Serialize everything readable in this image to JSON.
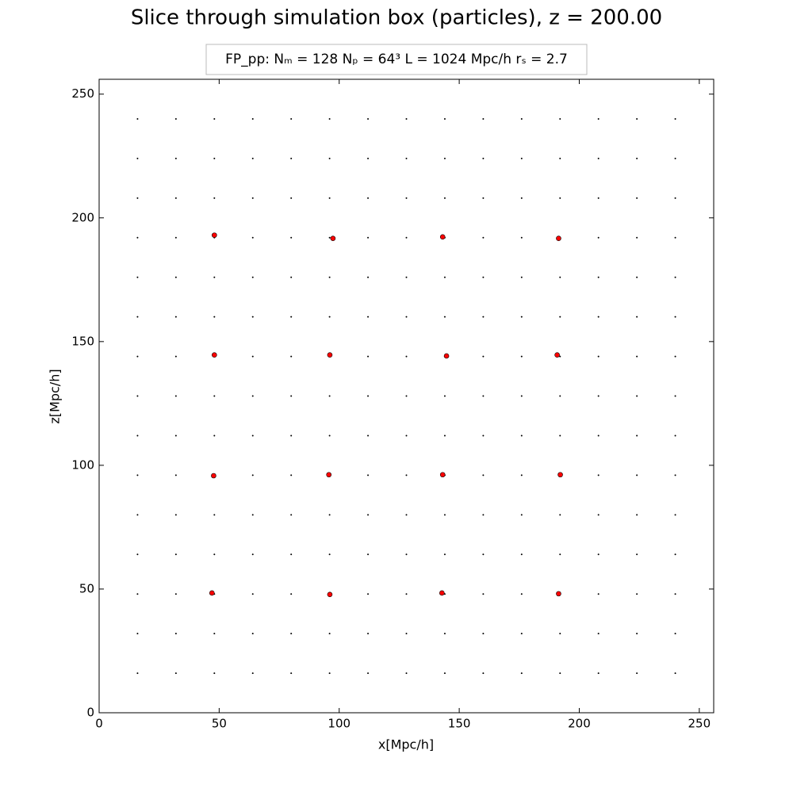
{
  "chart_data": {
    "type": "scatter",
    "title": "Slice through simulation box (particles), z = 200.00",
    "annotation": "FP_pp:  Nₘ = 128   Nₚ = 64³   L = 1024 Mpc/h   rₛ = 2.7",
    "x_label": "x[Mpc/h]",
    "y_label": "z[Mpc/h]",
    "xlim": [
      0,
      256
    ],
    "ylim": [
      0,
      256
    ],
    "xticks": [
      0,
      50,
      100,
      150,
      200,
      250
    ],
    "yticks": [
      0,
      50,
      100,
      150,
      200,
      250
    ],
    "grid": false,
    "series": [
      {
        "color": "#000000",
        "x": [
          16,
          32,
          48,
          64,
          80,
          96,
          112,
          128,
          144,
          160,
          176,
          192,
          208,
          224,
          240,
          16,
          32,
          48,
          64,
          80,
          96,
          112,
          128,
          144,
          160,
          176,
          192,
          208,
          224,
          240,
          16,
          32,
          48,
          64,
          80,
          96,
          112,
          128,
          144,
          160,
          176,
          192,
          208,
          224,
          240,
          16,
          32,
          48,
          64,
          80,
          96,
          112,
          128,
          144,
          160,
          176,
          192,
          208,
          224,
          240,
          16,
          32,
          48,
          64,
          80,
          96,
          112,
          128,
          144,
          160,
          176,
          192,
          208,
          224,
          240,
          16,
          32,
          48,
          64,
          80,
          96,
          112,
          128,
          144,
          160,
          176,
          192,
          208,
          224,
          240,
          16,
          32,
          48,
          64,
          80,
          96,
          112,
          128,
          144,
          160,
          176,
          192,
          208,
          224,
          240,
          16,
          32,
          48,
          64,
          80,
          96,
          112,
          128,
          144,
          160,
          176,
          192,
          208,
          224,
          240,
          16,
          32,
          48,
          64,
          80,
          96,
          112,
          128,
          144,
          160,
          176,
          192,
          208,
          224,
          240,
          16,
          32,
          48,
          64,
          80,
          96,
          112,
          128,
          144,
          160,
          176,
          192,
          208,
          224,
          240,
          16,
          32,
          48,
          64,
          80,
          96,
          112,
          128,
          144,
          160,
          176,
          192,
          208,
          224,
          240,
          16,
          32,
          48,
          64,
          80,
          96,
          112,
          128,
          144,
          160,
          176,
          192,
          208,
          224,
          240,
          16,
          32,
          48,
          64,
          80,
          96,
          112,
          128,
          144,
          160,
          176,
          192,
          208,
          224,
          240,
          16,
          32,
          48,
          64,
          80,
          96,
          112,
          128,
          144,
          160,
          176,
          192,
          208,
          224,
          240,
          16,
          32,
          48,
          64,
          80,
          96,
          112,
          128,
          144,
          160,
          176,
          192,
          208,
          224,
          240
        ],
        "y": [
          16,
          16,
          16,
          16,
          16,
          16,
          16,
          16,
          16,
          16,
          16,
          16,
          16,
          16,
          16,
          32,
          32,
          32,
          32,
          32,
          32,
          32,
          32,
          32,
          32,
          32,
          32,
          32,
          32,
          32,
          48,
          48,
          48,
          48,
          48,
          48,
          48,
          48,
          48,
          48,
          48,
          48,
          48,
          48,
          48,
          64,
          64,
          64,
          64,
          64,
          64,
          64,
          64,
          64,
          64,
          64,
          64,
          64,
          64,
          64,
          80,
          80,
          80,
          80,
          80,
          80,
          80,
          80,
          80,
          80,
          80,
          80,
          80,
          80,
          80,
          96,
          96,
          96,
          96,
          96,
          96,
          96,
          96,
          96,
          96,
          96,
          96,
          96,
          96,
          96,
          112,
          112,
          112,
          112,
          112,
          112,
          112,
          112,
          112,
          112,
          112,
          112,
          112,
          112,
          112,
          128,
          128,
          128,
          128,
          128,
          128,
          128,
          128,
          128,
          128,
          128,
          128,
          128,
          128,
          128,
          144,
          144,
          144,
          144,
          144,
          144,
          144,
          144,
          144,
          144,
          144,
          144,
          144,
          144,
          144,
          160,
          160,
          160,
          160,
          160,
          160,
          160,
          160,
          160,
          160,
          160,
          160,
          160,
          160,
          160,
          176,
          176,
          176,
          176,
          176,
          176,
          176,
          176,
          176,
          176,
          176,
          176,
          176,
          176,
          176,
          192,
          192,
          192,
          192,
          192,
          192,
          192,
          192,
          192,
          192,
          192,
          192,
          192,
          192,
          192,
          208,
          208,
          208,
          208,
          208,
          208,
          208,
          208,
          208,
          208,
          208,
          208,
          208,
          208,
          208,
          224,
          224,
          224,
          224,
          224,
          224,
          224,
          224,
          224,
          224,
          224,
          224,
          224,
          224,
          224,
          240,
          240,
          240,
          240,
          240,
          240,
          240,
          240,
          240,
          240,
          240,
          240,
          240,
          240,
          240
        ]
      },
      {
        "color": "#ff0000",
        "x": [
          48.0,
          97.4,
          143.1,
          191.4,
          48.0,
          96.1,
          144.7,
          190.8,
          47.7,
          95.7,
          143.1,
          192.1,
          47.0,
          96.1,
          142.8,
          191.4
        ],
        "y": [
          193.0,
          191.7,
          192.3,
          191.7,
          144.6,
          144.6,
          144.2,
          144.6,
          95.8,
          96.2,
          96.2,
          96.2,
          48.4,
          47.8,
          48.4,
          48.1
        ]
      }
    ]
  }
}
